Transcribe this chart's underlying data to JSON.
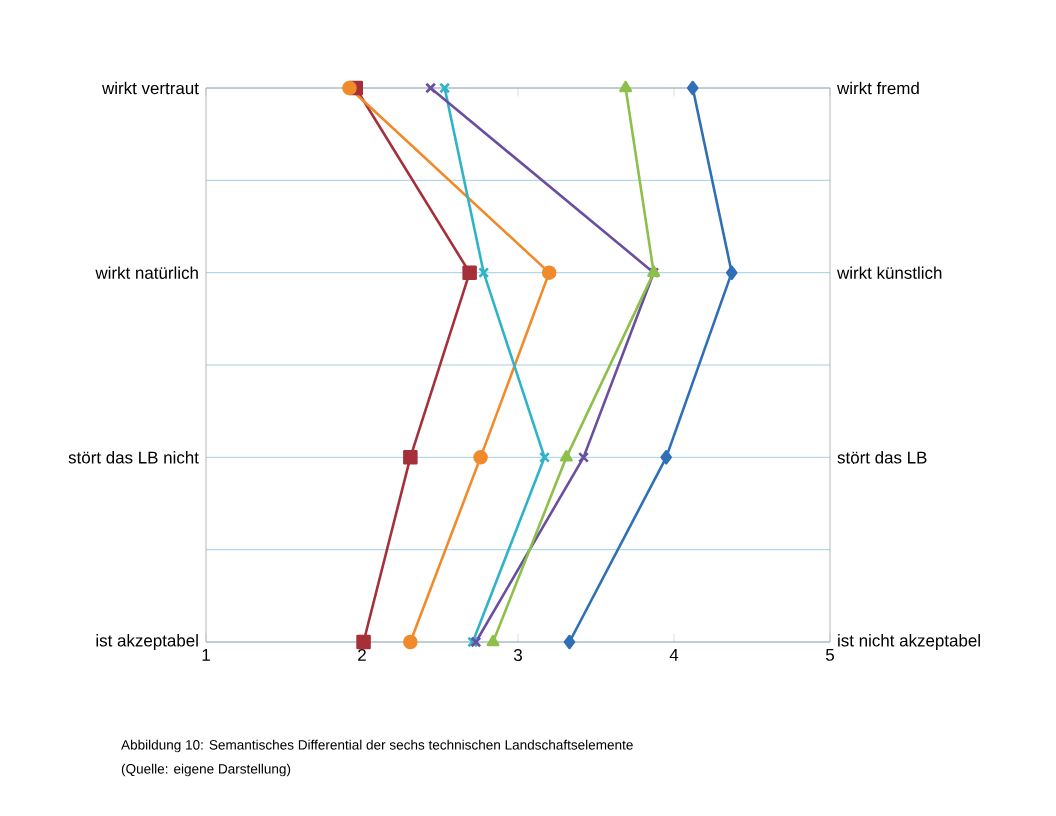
{
  "chart_data": {
    "type": "line",
    "orientation": "horizontal",
    "categories": [
      "wirkt vertraut",
      "wirkt natürlich",
      "stört das LB nicht",
      "ist akzeptabel"
    ],
    "y2_categories": [
      "wirkt fremd",
      "wirkt künstlich",
      "stört das LB",
      "ist nicht akzeptabel"
    ],
    "xlim": [
      1,
      5
    ],
    "xticks": [
      1,
      2,
      3,
      4,
      5
    ],
    "grid": "y",
    "series": [
      {
        "color": "#a5303a",
        "marker": "square",
        "values": [
          1.96,
          2.69,
          2.31,
          2.01
        ]
      },
      {
        "color": "#f08a2a",
        "marker": "circle",
        "values": [
          1.92,
          3.2,
          2.76,
          2.31
        ]
      },
      {
        "color": "#2eb3c9",
        "marker": "cross",
        "values": [
          2.53,
          2.78,
          3.17,
          2.71
        ]
      },
      {
        "color": "#6a4ea0",
        "marker": "cross",
        "values": [
          2.44,
          3.87,
          3.42,
          2.73
        ]
      },
      {
        "color": "#8cc04a",
        "marker": "triangle",
        "values": [
          3.69,
          3.87,
          3.31,
          2.84
        ]
      },
      {
        "color": "#2f6fb5",
        "marker": "diamond",
        "values": [
          4.12,
          4.37,
          3.95,
          3.33
        ]
      }
    ],
    "annotations": [
      "Abbildung 10: Semantisches Differential der sechs technischen Landschaftselemente",
      "(Quelle: eigene Darstellung)"
    ]
  }
}
